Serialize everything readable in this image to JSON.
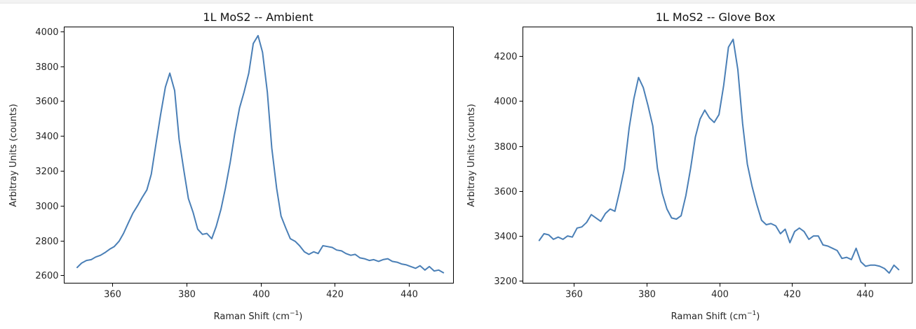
{
  "chart_data": [
    {
      "type": "line",
      "title": "1L MoS2 -- Ambient",
      "xlabel": "Raman Shift (cm",
      "xlabel_sup": "−1",
      "xlabel_close": ")",
      "ylabel": "Arbitray Units (counts)",
      "xlim": [
        347,
        452
      ],
      "ylim": [
        2555,
        4025
      ],
      "xticks": [
        360,
        380,
        400,
        420,
        440
      ],
      "yticks": [
        2600,
        2800,
        3000,
        3200,
        3400,
        3600,
        3800,
        4000
      ],
      "grid": false,
      "series": [
        {
          "color": "#4a7fb6",
          "x": [
            350.5,
            351.7,
            353,
            354.3,
            355.5,
            356.8,
            358,
            359.3,
            360.5,
            361.8,
            363,
            364.3,
            365.5,
            366.8,
            368,
            369.3,
            370.5,
            371.8,
            373,
            374.3,
            375.5,
            376.8,
            378,
            379.3,
            380.5,
            381.8,
            383,
            384.3,
            385.5,
            386.8,
            388,
            389.3,
            390.5,
            391.8,
            393,
            394.3,
            395.5,
            396.8,
            398,
            399.3,
            400.5,
            401.8,
            403,
            404.3,
            405.5,
            406.8,
            408,
            409.3,
            410.5,
            411.8,
            413,
            414.3,
            415.5,
            416.8,
            418,
            419.3,
            420.5,
            421.8,
            423,
            424.3,
            425.5,
            426.8,
            428,
            429.3,
            430.5,
            431.8,
            433,
            434.3,
            435.5,
            436.8,
            438,
            439.3,
            440.5,
            441.8,
            443,
            444.3,
            445.5,
            446.8,
            448,
            449.3
          ],
          "y": [
            2645,
            2670,
            2685,
            2690,
            2705,
            2715,
            2730,
            2750,
            2765,
            2795,
            2840,
            2900,
            2955,
            3000,
            3045,
            3090,
            3180,
            3360,
            3520,
            3680,
            3760,
            3660,
            3380,
            3200,
            3040,
            2960,
            2865,
            2835,
            2840,
            2810,
            2880,
            2980,
            3100,
            3250,
            3410,
            3560,
            3650,
            3760,
            3930,
            3975,
            3880,
            3650,
            3330,
            3100,
            2940,
            2870,
            2810,
            2795,
            2770,
            2735,
            2720,
            2735,
            2725,
            2770,
            2765,
            2760,
            2745,
            2740,
            2725,
            2715,
            2720,
            2700,
            2695,
            2685,
            2690,
            2680,
            2690,
            2695,
            2680,
            2675,
            2665,
            2660,
            2650,
            2640,
            2655,
            2630,
            2650,
            2625,
            2630,
            2615
          ]
        }
      ]
    },
    {
      "type": "line",
      "title": "1L MoS2 -- Glove Box",
      "xlabel": "Raman Shift (cm",
      "xlabel_sup": "−1",
      "xlabel_close": ")",
      "ylabel": "Arbitray Units (counts)",
      "xlim": [
        346,
        453
      ],
      "ylim": [
        3190,
        4330
      ],
      "xticks": [
        360,
        380,
        400,
        420,
        440
      ],
      "yticks": [
        3200,
        3400,
        3600,
        3800,
        4000,
        4200
      ],
      "grid": false,
      "series": [
        {
          "color": "#4a7fb6",
          "x": [
            350.5,
            351.8,
            353.1,
            354.4,
            355.7,
            357,
            358.3,
            359.6,
            360.9,
            362.2,
            363.5,
            364.8,
            366.1,
            367.4,
            368.7,
            370,
            371.3,
            372.6,
            373.9,
            375.2,
            376.5,
            377.8,
            379.1,
            380.4,
            381.7,
            383,
            384.3,
            385.6,
            386.9,
            388.2,
            389.5,
            390.8,
            392.1,
            393.4,
            394.7,
            396,
            397.3,
            398.6,
            399.9,
            401.2,
            402.5,
            403.8,
            405.1,
            406.4,
            407.7,
            409,
            410.3,
            411.6,
            412.9,
            414.2,
            415.5,
            416.8,
            418.1,
            419.4,
            420.7,
            422,
            423.3,
            424.6,
            425.9,
            427.2,
            428.5,
            429.8,
            431.1,
            432.4,
            433.7,
            435,
            436.3,
            437.6,
            438.9,
            440.2,
            441.5,
            442.8,
            444.1,
            445.4,
            446.7,
            448,
            449.3
          ],
          "y": [
            3380,
            3410,
            3405,
            3385,
            3395,
            3385,
            3400,
            3395,
            3435,
            3440,
            3460,
            3495,
            3480,
            3465,
            3500,
            3520,
            3510,
            3600,
            3700,
            3880,
            4010,
            4105,
            4060,
            3980,
            3890,
            3700,
            3590,
            3520,
            3480,
            3475,
            3490,
            3580,
            3700,
            3840,
            3920,
            3960,
            3925,
            3905,
            3940,
            4070,
            4240,
            4275,
            4140,
            3900,
            3720,
            3620,
            3540,
            3470,
            3450,
            3455,
            3445,
            3410,
            3430,
            3370,
            3420,
            3435,
            3420,
            3385,
            3400,
            3400,
            3360,
            3355,
            3345,
            3335,
            3300,
            3305,
            3295,
            3345,
            3285,
            3265,
            3270,
            3270,
            3265,
            3255,
            3235,
            3270,
            3250
          ]
        }
      ]
    }
  ]
}
